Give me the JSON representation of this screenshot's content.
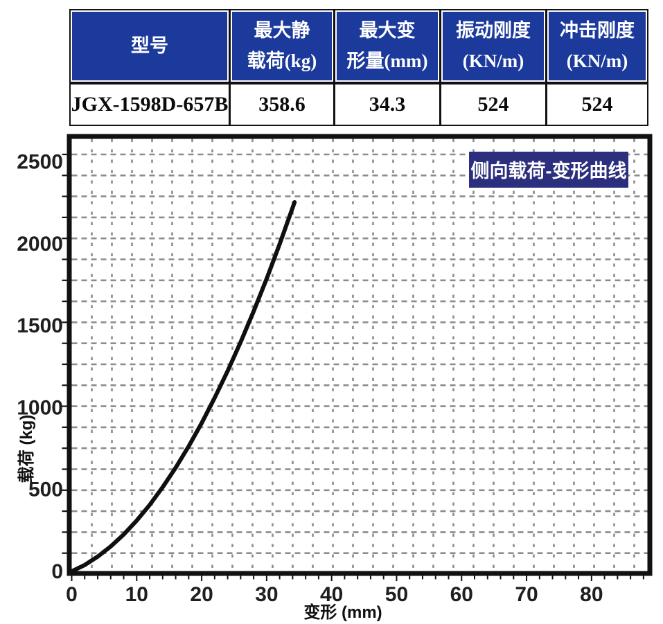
{
  "table": {
    "headers": [
      {
        "line1": "型号",
        "line2": ""
      },
      {
        "line1": "最大静",
        "line2": "载荷(kg)"
      },
      {
        "line1": "最大变",
        "line2": "形量(mm)"
      },
      {
        "line1": "振动刚度",
        "line2": "(KN/m)"
      },
      {
        "line1": "冲击刚度",
        "line2": "(KN/m)"
      }
    ],
    "row": [
      "JGX-1598D-657B",
      "358.6",
      "34.3",
      "524",
      "524"
    ]
  },
  "chart_data": {
    "type": "line",
    "annotation": "侧向载荷-变形曲线",
    "annotation_position": "top-right",
    "xlabel": "变形 (mm)",
    "ylabel": "载荷 (kg)",
    "x_ticks": [
      0,
      10,
      20,
      30,
      40,
      50,
      60,
      70,
      80
    ],
    "y_ticks": [
      0,
      500,
      1000,
      1500,
      2000,
      2500
    ],
    "xlim": [
      0,
      88.6
    ],
    "ylim": [
      0,
      2640
    ],
    "grid": "dashed",
    "series": [
      {
        "name": "侧向载荷-变形曲线",
        "x": [
          0,
          2,
          4,
          6,
          8,
          10,
          12,
          14,
          16,
          18,
          20,
          22,
          24,
          26,
          28,
          30,
          32,
          34.3
        ],
        "y": [
          0,
          39,
          90,
          152,
          225,
          310,
          406,
          514,
          633,
          763,
          905,
          1059,
          1223,
          1400,
          1587,
          1786,
          1997,
          2253
        ]
      }
    ]
  },
  "colors": {
    "table_header_bg": "#1b3a9b",
    "table_header_text": "#ffffff",
    "table_grid": "#111111",
    "annotation_bg": "#2b2f7e",
    "annotation_text": "#ffffff",
    "curve": "#0f0f0f",
    "grid": "#8c8c8c",
    "axis": "#111111",
    "tick_text": "#1f1f1f"
  }
}
